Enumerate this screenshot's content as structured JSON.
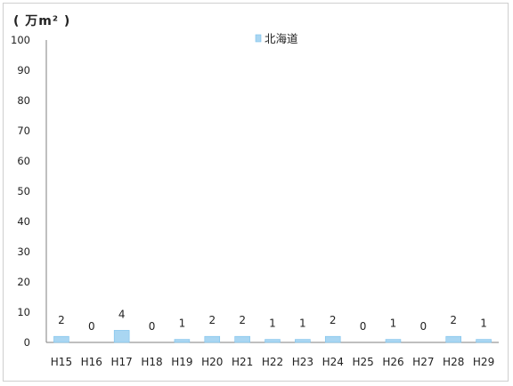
{
  "chart_data": {
    "type": "bar",
    "unit_label": "( 万m² )",
    "legend": {
      "label": "北海道",
      "placement": "top-center"
    },
    "categories": [
      "H15",
      "H16",
      "H17",
      "H18",
      "H19",
      "H20",
      "H21",
      "H22",
      "H23",
      "H24",
      "H25",
      "H26",
      "H27",
      "H28",
      "H29"
    ],
    "series": [
      {
        "name": "北海道",
        "values": [
          2,
          0,
          4,
          0,
          1,
          2,
          2,
          1,
          1,
          2,
          0,
          1,
          0,
          2,
          1
        ]
      }
    ],
    "y_ticks": [
      "0",
      "10",
      "20",
      "30",
      "40",
      "50",
      "60",
      "70",
      "80",
      "90",
      "100"
    ],
    "ylim": [
      0,
      100
    ],
    "grid": false,
    "colors": {
      "bar": "#a9d6f2",
      "bar_edge": "#7cc1ec",
      "axis": "#7f7f7f",
      "text": "#222222"
    }
  }
}
